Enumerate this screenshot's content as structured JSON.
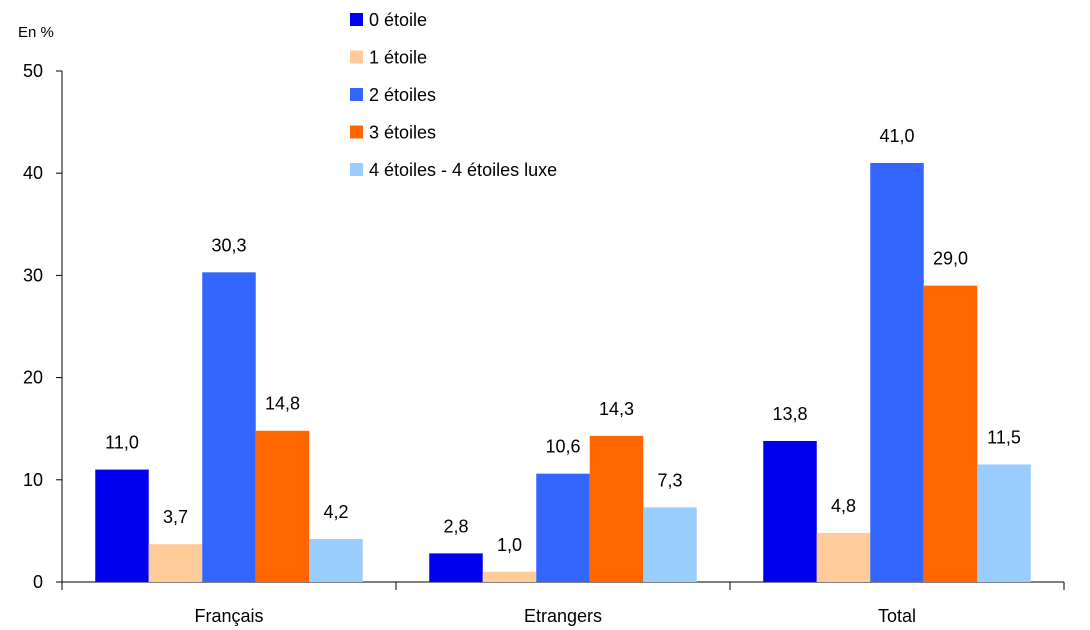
{
  "chart_data": {
    "type": "bar",
    "unit_label": "En %",
    "categories": [
      "Français",
      "Etrangers",
      "Total"
    ],
    "ylim": [
      0,
      50
    ],
    "yticks": [
      0,
      10,
      20,
      30,
      40,
      50
    ],
    "legend_position": "top-center",
    "series": [
      {
        "name": "0 étoile",
        "color": "#0000EE",
        "values": [
          11.0,
          2.8,
          13.8
        ],
        "labels": [
          "11,0",
          "2,8",
          "13,8"
        ]
      },
      {
        "name": "1 étoile",
        "color": "#FFCC99",
        "values": [
          3.7,
          1.0,
          4.8
        ],
        "labels": [
          "3,7",
          "1,0",
          "4,8"
        ]
      },
      {
        "name": "2 étoiles",
        "color": "#3366FF",
        "values": [
          30.3,
          10.6,
          41.0
        ],
        "labels": [
          "30,3",
          "10,6",
          "41,0"
        ]
      },
      {
        "name": "3 étoiles",
        "color": "#FF6600",
        "values": [
          14.8,
          14.3,
          29.0
        ],
        "labels": [
          "14,8",
          "14,3",
          "29,0"
        ]
      },
      {
        "name": "4 étoiles - 4 étoiles luxe",
        "color": "#99CCFF",
        "values": [
          4.2,
          7.3,
          11.5
        ],
        "labels": [
          "4,2",
          "7,3",
          "11,5"
        ]
      }
    ]
  }
}
